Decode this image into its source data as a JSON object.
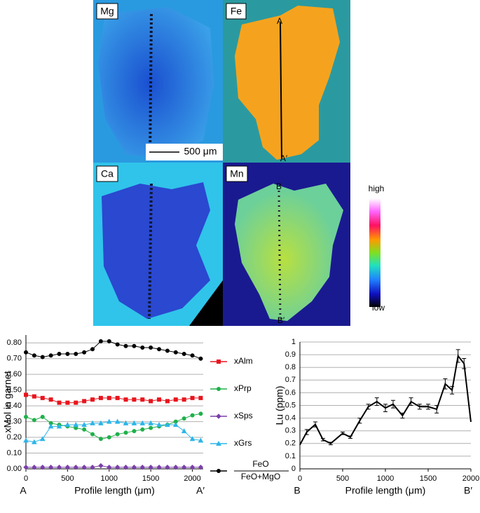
{
  "maps": {
    "panels": [
      "Mg",
      "Fe",
      "Ca",
      "Mn"
    ],
    "scale_bar": "500 μm",
    "profile_a": [
      "A",
      "A′"
    ],
    "profile_b": [
      "B",
      "B′"
    ],
    "colorbar": {
      "high": "high",
      "low": "low"
    }
  },
  "chart_data": [
    {
      "type": "line",
      "ylabel": "xMol in garnet",
      "xlabel": "Profile length (μm)",
      "x_end_labels": [
        "A",
        "A′"
      ],
      "x": [
        0,
        100,
        200,
        300,
        400,
        500,
        600,
        700,
        800,
        900,
        1000,
        1100,
        1200,
        1300,
        1400,
        1500,
        1600,
        1700,
        1800,
        1900,
        2000,
        2100
      ],
      "series": [
        {
          "name": "xAlm",
          "color": "#e8141c",
          "marker": "square",
          "values": [
            0.47,
            0.46,
            0.45,
            0.44,
            0.42,
            0.42,
            0.42,
            0.43,
            0.44,
            0.45,
            0.45,
            0.45,
            0.44,
            0.44,
            0.44,
            0.43,
            0.44,
            0.43,
            0.44,
            0.44,
            0.45,
            0.45
          ]
        },
        {
          "name": "xPrp",
          "color": "#1fb04a",
          "marker": "circle",
          "values": [
            0.33,
            0.31,
            0.33,
            0.29,
            0.28,
            0.27,
            0.26,
            0.25,
            0.22,
            0.19,
            0.2,
            0.22,
            0.23,
            0.24,
            0.25,
            0.26,
            0.27,
            0.28,
            0.3,
            0.32,
            0.34,
            0.35
          ]
        },
        {
          "name": "xSps",
          "color": "#7a3fa8",
          "marker": "diamond",
          "values": [
            0.01,
            0.01,
            0.01,
            0.01,
            0.01,
            0.01,
            0.01,
            0.01,
            0.01,
            0.02,
            0.01,
            0.01,
            0.01,
            0.01,
            0.01,
            0.01,
            0.01,
            0.01,
            0.01,
            0.01,
            0.01,
            0.01
          ]
        },
        {
          "name": "xGrs",
          "color": "#2cb5e8",
          "marker": "triangle",
          "values": [
            0.18,
            0.17,
            0.19,
            0.27,
            0.27,
            0.28,
            0.28,
            0.28,
            0.29,
            0.29,
            0.3,
            0.3,
            0.29,
            0.29,
            0.29,
            0.29,
            0.28,
            0.28,
            0.28,
            0.24,
            0.19,
            0.18
          ]
        },
        {
          "name": [
            "FeO",
            "FeO+MgO"
          ],
          "color": "#000000",
          "marker": "circle",
          "values": [
            0.74,
            0.72,
            0.71,
            0.72,
            0.73,
            0.73,
            0.73,
            0.74,
            0.76,
            0.81,
            0.81,
            0.79,
            0.78,
            0.78,
            0.77,
            0.77,
            0.76,
            0.75,
            0.74,
            0.73,
            0.72,
            0.7
          ]
        }
      ],
      "xlim": [
        0,
        2130
      ],
      "xticks": [
        0,
        500,
        1000,
        1500,
        2000
      ],
      "ylim": [
        0,
        0.85
      ],
      "yticks": [
        {
          "value": 0,
          "label": "0.00"
        },
        {
          "value": 0.1,
          "label": "0.10"
        },
        {
          "value": 0.2,
          "label": "0.20"
        },
        {
          "value": 0.3,
          "label": "0.30"
        },
        {
          "value": 0.4,
          "label": "0.40"
        },
        {
          "value": 0.5,
          "label": "0.50"
        },
        {
          "value": 0.6,
          "label": "0.60"
        },
        {
          "value": 0.7,
          "label": "0.70"
        },
        {
          "value": 0.8,
          "label": "0.80"
        }
      ],
      "grid": true,
      "legend": "right"
    },
    {
      "type": "line",
      "ylabel": "Lu (ppm)",
      "xlabel": "Profile length (μm)",
      "x_end_labels": [
        "B",
        "B′"
      ],
      "x": [
        0,
        80,
        180,
        270,
        360,
        500,
        590,
        700,
        800,
        900,
        1000,
        1090,
        1200,
        1300,
        1400,
        1500,
        1600,
        1700,
        1780,
        1850,
        1920,
        2000
      ],
      "values": [
        0.19,
        0.29,
        0.35,
        0.23,
        0.2,
        0.28,
        0.25,
        0.38,
        0.49,
        0.53,
        0.48,
        0.51,
        0.42,
        0.53,
        0.49,
        0.49,
        0.47,
        0.67,
        0.62,
        0.89,
        0.83,
        0.37
      ],
      "errors": [
        null,
        0.02,
        0.02,
        0.01,
        0.01,
        0.01,
        0.01,
        0.02,
        0.02,
        0.03,
        0.03,
        0.03,
        0.02,
        0.03,
        0.02,
        0.02,
        0.03,
        0.04,
        0.03,
        0.05,
        0.04,
        null
      ],
      "color": "#000000",
      "marker": "none",
      "xlim": [
        0,
        2000
      ],
      "xticks": [
        0,
        500,
        1000,
        1500,
        2000
      ],
      "ylim": [
        0,
        1
      ],
      "yticks": [
        0,
        0.1,
        0.2,
        0.3,
        0.4,
        0.5,
        0.6,
        0.7,
        0.8,
        0.9,
        1
      ],
      "grid": true
    }
  ]
}
